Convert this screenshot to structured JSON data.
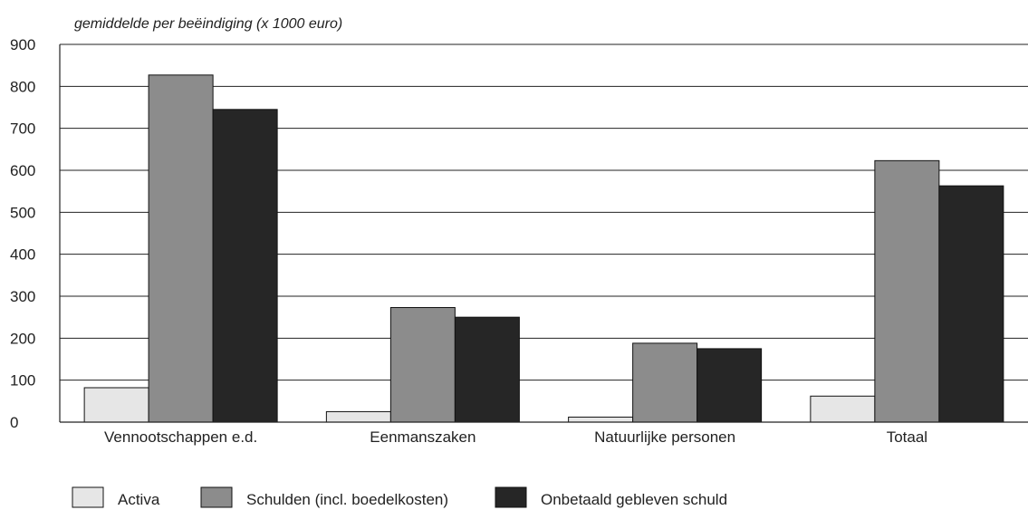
{
  "chart_data": {
    "type": "bar",
    "title": "",
    "xlabel": "",
    "ylabel": "gemiddelde per beëindiging (x 1000 euro)",
    "ylim": [
      0,
      900
    ],
    "yticks": [
      0,
      100,
      200,
      300,
      400,
      500,
      600,
      700,
      800,
      900
    ],
    "grid": true,
    "legend_position": "bottom-left",
    "categories": [
      "Vennootschappen e.d.",
      "Eenmanszaken",
      "Natuurlijke personen",
      "Totaal"
    ],
    "series": [
      {
        "name": "Activa",
        "color": "#e6e6e6",
        "values": [
          82,
          25,
          12,
          62
        ]
      },
      {
        "name": "Schulden (incl. boedelkosten)",
        "color": "#8c8c8c",
        "values": [
          827,
          273,
          188,
          623
        ]
      },
      {
        "name": "Onbetaald gebleven schuld",
        "color": "#262626",
        "values": [
          745,
          250,
          175,
          563
        ]
      }
    ]
  }
}
